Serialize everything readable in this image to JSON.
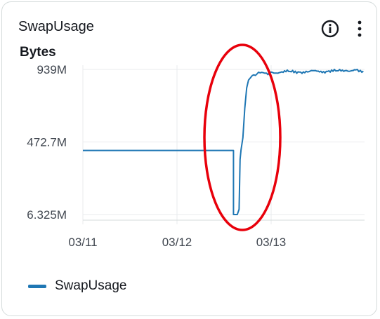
{
  "widget": {
    "title": "SwapUsage",
    "info_icon": "info-circle-icon",
    "menu_icon": "vertical-ellipsis-icon"
  },
  "colors": {
    "series": "#1f77b4",
    "grid": "#e9ebed",
    "annotation": "#e8000b"
  },
  "chart_data": {
    "type": "line",
    "ylabel": "Bytes",
    "yticks": [
      "939M",
      "472.7M",
      "6.325M"
    ],
    "ytick_values": [
      939,
      472.7,
      6.325
    ],
    "xticks": [
      "03/11",
      "03/12",
      "03/13"
    ],
    "xtick_values": [
      0,
      1,
      2
    ],
    "xlim": [
      0,
      2.98
    ],
    "ylim": [
      6.325,
      939
    ],
    "grid": true,
    "legend": "bottom-left",
    "series": [
      {
        "name": "SwapUsage",
        "x": [
          0,
          1.6,
          1.6,
          1.62,
          1.64,
          1.66,
          1.67,
          1.68,
          1.7,
          1.72,
          1.74,
          1.76,
          1.8,
          1.85,
          1.9,
          1.95,
          2.0,
          2.1,
          2.2,
          2.3,
          2.4,
          2.5,
          2.6,
          2.7,
          2.8,
          2.9,
          2.98
        ],
        "y": [
          418,
          418,
          6.325,
          6.325,
          6.325,
          40,
          360,
          420,
          500,
          690,
          820,
          870,
          900,
          910,
          920,
          915,
          922,
          920,
          926,
          922,
          924,
          928,
          926,
          930,
          932,
          936,
          928
        ]
      }
    ],
    "annotations": [
      {
        "type": "ellipse",
        "description": "red circle highlighting the spike"
      }
    ]
  },
  "legend": {
    "items": [
      "SwapUsage"
    ]
  }
}
